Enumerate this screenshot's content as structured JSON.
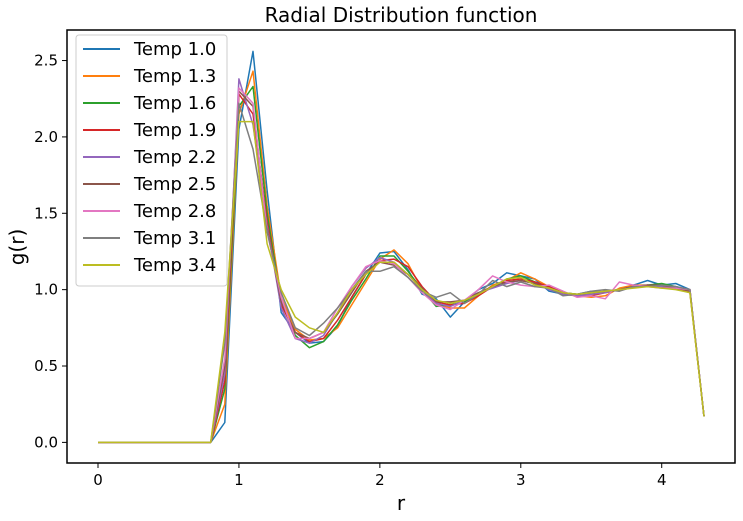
{
  "chart_data": {
    "type": "line",
    "title": "Radial Distribution function",
    "xlabel": "r",
    "ylabel": "g(r)",
    "xlim": [
      -0.22,
      4.52
    ],
    "ylim": [
      -0.135,
      2.7
    ],
    "xticks": [
      0,
      1,
      2,
      3,
      4
    ],
    "xtick_labels": [
      "0",
      "1",
      "2",
      "3",
      "4"
    ],
    "yticks": [
      0.0,
      0.5,
      1.0,
      1.5,
      2.0,
      2.5
    ],
    "ytick_labels": [
      "0.0",
      "0.5",
      "1.0",
      "1.5",
      "2.0",
      "2.5"
    ],
    "grid": false,
    "legend_position": "top-left",
    "x": [
      0,
      0.1,
      0.2,
      0.3,
      0.4,
      0.5,
      0.6,
      0.7,
      0.8,
      0.9,
      1.0,
      1.1,
      1.2,
      1.3,
      1.4,
      1.5,
      1.6,
      1.7,
      1.8,
      1.9,
      2.0,
      2.1,
      2.2,
      2.3,
      2.4,
      2.5,
      2.6,
      2.7,
      2.8,
      2.9,
      3.0,
      3.1,
      3.2,
      3.3,
      3.4,
      3.5,
      3.6,
      3.7,
      3.8,
      3.9,
      4.0,
      4.1,
      4.2,
      4.3
    ],
    "series": [
      {
        "name": "Temp 1.0",
        "color": "#1f77b4",
        "values": [
          0,
          0,
          0,
          0,
          0,
          0,
          0,
          0,
          0,
          0.13,
          2.05,
          2.56,
          1.65,
          0.85,
          0.72,
          0.65,
          0.66,
          0.76,
          0.95,
          1.1,
          1.24,
          1.25,
          1.13,
          0.97,
          0.94,
          0.82,
          0.92,
          1.0,
          1.04,
          1.11,
          1.09,
          1.07,
          0.99,
          0.97,
          0.97,
          0.99,
          0.98,
          1.0,
          1.03,
          1.06,
          1.03,
          1.04,
          1.0,
          0.17
        ]
      },
      {
        "name": "Temp 1.3",
        "color": "#ff7f0e",
        "values": [
          0,
          0,
          0,
          0,
          0,
          0,
          0,
          0,
          0,
          0.25,
          2.15,
          2.43,
          1.55,
          0.95,
          0.74,
          0.67,
          0.68,
          0.75,
          0.9,
          1.05,
          1.2,
          1.26,
          1.17,
          1.0,
          0.91,
          0.88,
          0.88,
          0.96,
          1.03,
          1.06,
          1.11,
          1.07,
          1.02,
          0.97,
          0.96,
          0.95,
          0.96,
          1.01,
          1.03,
          1.03,
          1.02,
          1.01,
          0.98,
          0.17
        ]
      },
      {
        "name": "Temp 1.6",
        "color": "#2ca02c",
        "values": [
          0,
          0,
          0,
          0,
          0,
          0,
          0,
          0,
          0,
          0.35,
          2.2,
          2.33,
          1.5,
          0.92,
          0.7,
          0.62,
          0.66,
          0.77,
          0.93,
          1.07,
          1.22,
          1.22,
          1.12,
          1.0,
          0.89,
          0.9,
          0.92,
          0.97,
          1.02,
          1.07,
          1.09,
          1.05,
          1.01,
          0.98,
          0.97,
          0.97,
          0.99,
          1.0,
          1.02,
          1.03,
          1.04,
          1.02,
          0.99,
          0.17
        ]
      },
      {
        "name": "Temp 1.9",
        "color": "#d62728",
        "values": [
          0,
          0,
          0,
          0,
          0,
          0,
          0,
          0,
          0,
          0.4,
          2.28,
          2.15,
          1.45,
          0.9,
          0.72,
          0.66,
          0.68,
          0.8,
          0.95,
          1.1,
          1.19,
          1.2,
          1.15,
          1.02,
          0.92,
          0.9,
          0.91,
          0.96,
          1.02,
          1.06,
          1.07,
          1.05,
          1.02,
          0.98,
          0.96,
          0.96,
          0.98,
          1.0,
          1.02,
          1.03,
          1.02,
          1.01,
          1.0,
          0.17
        ]
      },
      {
        "name": "Temp 2.2",
        "color": "#9467bd",
        "values": [
          0,
          0,
          0,
          0,
          0,
          0,
          0,
          0,
          0,
          0.45,
          2.38,
          2.08,
          1.42,
          0.88,
          0.68,
          0.65,
          0.7,
          0.85,
          1.02,
          1.14,
          1.21,
          1.18,
          1.1,
          1.0,
          0.91,
          0.89,
          0.93,
          0.98,
          1.01,
          1.04,
          1.06,
          1.04,
          1.0,
          0.97,
          0.96,
          0.97,
          0.98,
          1.0,
          1.02,
          1.03,
          1.02,
          1.02,
          1.0,
          0.17
        ]
      },
      {
        "name": "Temp 2.5",
        "color": "#8c564b",
        "values": [
          0,
          0,
          0,
          0,
          0,
          0,
          0,
          0,
          0,
          0.5,
          2.3,
          2.2,
          1.4,
          0.92,
          0.72,
          0.68,
          0.72,
          0.84,
          0.98,
          1.12,
          1.18,
          1.16,
          1.1,
          1.01,
          0.92,
          0.92,
          0.93,
          0.98,
          1.02,
          1.05,
          1.06,
          1.04,
          1.01,
          0.98,
          0.97,
          0.98,
          0.99,
          1.0,
          1.02,
          1.03,
          1.03,
          1.01,
          0.99,
          0.17
        ]
      },
      {
        "name": "Temp 2.8",
        "color": "#e377c2",
        "values": [
          0,
          0,
          0,
          0,
          0,
          0,
          0,
          0,
          0,
          0.55,
          2.32,
          2.22,
          1.38,
          0.95,
          0.68,
          0.68,
          0.72,
          0.88,
          1.02,
          1.15,
          1.19,
          1.17,
          1.08,
          0.98,
          0.9,
          0.87,
          0.93,
          1.0,
          1.09,
          1.05,
          1.03,
          1.02,
          1.03,
          0.99,
          0.95,
          0.96,
          0.94,
          1.05,
          1.03,
          1.02,
          1.01,
          1.01,
          1.0,
          0.17
        ]
      },
      {
        "name": "Temp 3.1",
        "color": "#7f7f7f",
        "values": [
          0,
          0,
          0,
          0,
          0,
          0,
          0,
          0,
          0,
          0.65,
          2.22,
          1.92,
          1.38,
          0.98,
          0.75,
          0.7,
          0.78,
          0.88,
          1.0,
          1.12,
          1.12,
          1.15,
          1.08,
          0.99,
          0.95,
          0.98,
          0.91,
          0.97,
          1.06,
          1.02,
          1.05,
          1.02,
          1.01,
          0.96,
          0.97,
          0.99,
          1.0,
          0.99,
          1.02,
          1.02,
          1.03,
          1.02,
          1.0,
          0.17
        ]
      },
      {
        "name": "Temp 3.4",
        "color": "#bcbd22",
        "values": [
          0,
          0,
          0,
          0,
          0,
          0,
          0,
          0,
          0,
          0.72,
          2.1,
          2.1,
          1.3,
          1.0,
          0.82,
          0.75,
          0.72,
          0.85,
          1.0,
          1.1,
          1.18,
          1.18,
          1.1,
          1.0,
          0.93,
          0.91,
          0.93,
          0.97,
          1.02,
          1.07,
          1.08,
          1.03,
          1.01,
          0.98,
          0.97,
          0.98,
          0.99,
          1.0,
          1.01,
          1.02,
          1.01,
          1.0,
          0.98,
          0.17
        ]
      }
    ]
  }
}
